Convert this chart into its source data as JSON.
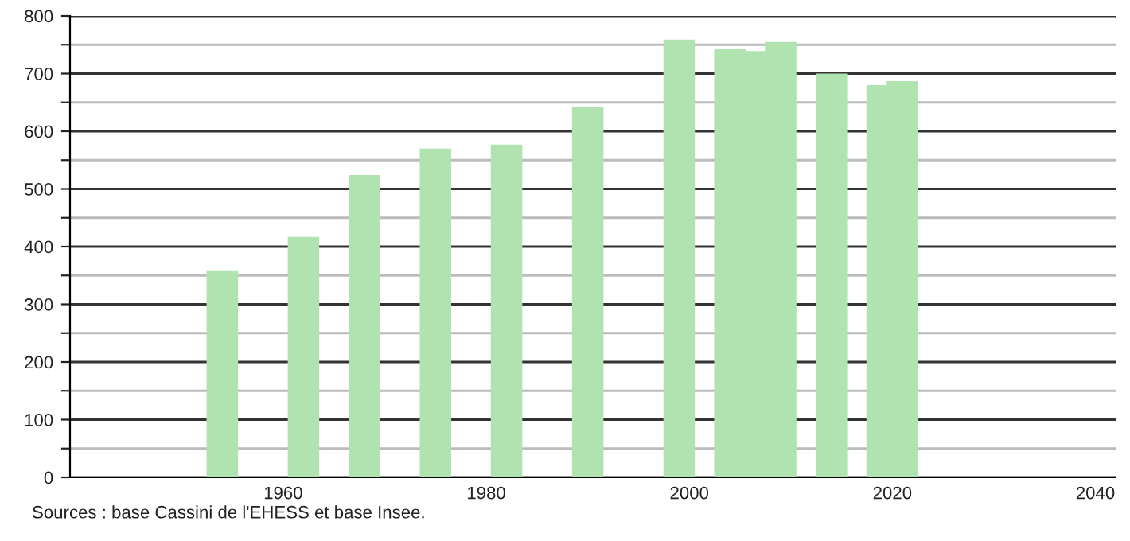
{
  "chart_data": {
    "type": "bar",
    "x": [
      1954,
      1962,
      1968,
      1975,
      1982,
      1990,
      1999,
      2004,
      2006,
      2009,
      2014,
      2019,
      2021
    ],
    "values": [
      359,
      417,
      524,
      570,
      577,
      642,
      759,
      742,
      739,
      755,
      700,
      680,
      687
    ],
    "color": "#b0e3b0",
    "xlim": [
      1939,
      2042
    ],
    "xticks": [
      1960,
      1980,
      2000,
      2020,
      2040
    ],
    "ylim": [
      0,
      800
    ],
    "yticks": [
      0,
      {
        "value": 50,
        "label": null
      },
      100,
      {
        "value": 150,
        "label": null
      },
      200,
      {
        "value": 250,
        "label": null
      },
      300,
      {
        "value": 350,
        "label": null
      },
      400,
      {
        "value": 450,
        "label": null
      },
      500,
      {
        "value": 550,
        "label": null
      },
      600,
      {
        "value": 650,
        "label": null
      },
      700,
      {
        "value": 750,
        "label": null
      },
      800
    ],
    "grid": "y",
    "annotations": [
      "Sources : base Cassini de l'EHESS et base Insee."
    ]
  }
}
